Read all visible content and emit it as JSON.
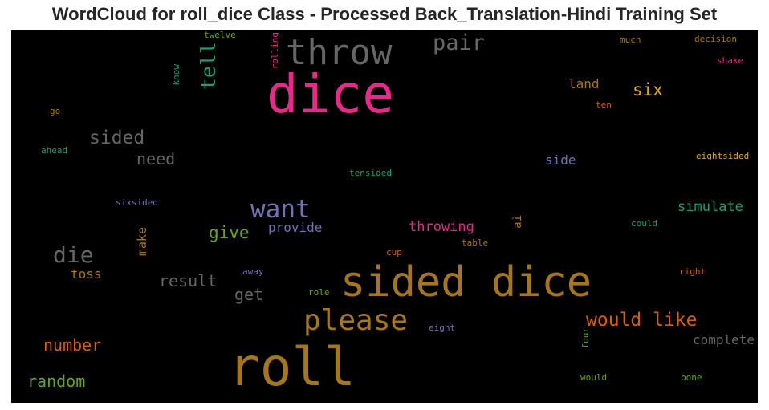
{
  "title": "WordCloud for roll_dice Class - Processed Back_Translation-Hindi Training Set",
  "words": {
    "dice": {
      "text": "dice",
      "color": "#e7298a"
    },
    "roll": {
      "text": "roll",
      "color": "#a6761d"
    },
    "sided_dice": {
      "text": "sided dice",
      "color": "#a6761d"
    },
    "throw": {
      "text": "throw",
      "color": "#666666"
    },
    "please": {
      "text": "please",
      "color": "#a6761d"
    },
    "want": {
      "text": "want",
      "color": "#7570b3"
    },
    "pair": {
      "text": "pair",
      "color": "#666666"
    },
    "tell": {
      "text": "tell",
      "color": "#1b9e77"
    },
    "sided": {
      "text": "sided",
      "color": "#666666"
    },
    "need": {
      "text": "need",
      "color": "#666666"
    },
    "die": {
      "text": "die",
      "color": "#666666"
    },
    "would_like": {
      "text": "would like",
      "color": "#d95f02"
    },
    "six": {
      "text": "six",
      "color": "#e6ab02"
    },
    "land": {
      "text": "land",
      "color": "#a6761d"
    },
    "side": {
      "text": "side",
      "color": "#7570b3"
    },
    "give": {
      "text": "give",
      "color": "#66a61e"
    },
    "provide": {
      "text": "provide",
      "color": "#7570b3"
    },
    "throwing": {
      "text": "throwing",
      "color": "#e7298a"
    },
    "simulate": {
      "text": "simulate",
      "color": "#1b9e77"
    },
    "result": {
      "text": "result",
      "color": "#666666"
    },
    "get": {
      "text": "get",
      "color": "#666666"
    },
    "toss": {
      "text": "toss",
      "color": "#a6761d"
    },
    "number": {
      "text": "number",
      "color": "#d95f02"
    },
    "random": {
      "text": "random",
      "color": "#66a61e"
    },
    "complete": {
      "text": "complete",
      "color": "#666666"
    },
    "make": {
      "text": "make",
      "color": "#a6761d"
    },
    "ai": {
      "text": "ai",
      "color": "#a6761d"
    },
    "twelve": {
      "text": "twelve",
      "color": "#66a61e"
    },
    "rolling": {
      "text": "rolling",
      "color": "#e7298a"
    },
    "know": {
      "text": "know",
      "color": "#1b9e77"
    },
    "much": {
      "text": "much",
      "color": "#a6761d"
    },
    "decision": {
      "text": "decision",
      "color": "#a6761d"
    },
    "shake": {
      "text": "shake",
      "color": "#e7298a"
    },
    "ten": {
      "text": "ten",
      "color": "#d95f02"
    },
    "go": {
      "text": "go",
      "color": "#a6761d"
    },
    "ahead": {
      "text": "ahead",
      "color": "#1b9e77"
    },
    "tensided": {
      "text": "tensided",
      "color": "#1b9e77"
    },
    "eightsided": {
      "text": "eightsided",
      "color": "#e6ab02"
    },
    "sixsided": {
      "text": "sixsided",
      "color": "#7570b3"
    },
    "could": {
      "text": "could",
      "color": "#1b9e77"
    },
    "table": {
      "text": "table",
      "color": "#a6761d"
    },
    "cup": {
      "text": "cup",
      "color": "#d95f02"
    },
    "away": {
      "text": "away",
      "color": "#7570b3"
    },
    "right": {
      "text": "right",
      "color": "#d95f02"
    },
    "role": {
      "text": "role",
      "color": "#66a61e"
    },
    "eight": {
      "text": "eight",
      "color": "#7570b3"
    },
    "four": {
      "text": "four",
      "color": "#66a61e"
    },
    "would": {
      "text": "would",
      "color": "#66a61e"
    },
    "bone": {
      "text": "bone",
      "color": "#66a61e"
    }
  }
}
